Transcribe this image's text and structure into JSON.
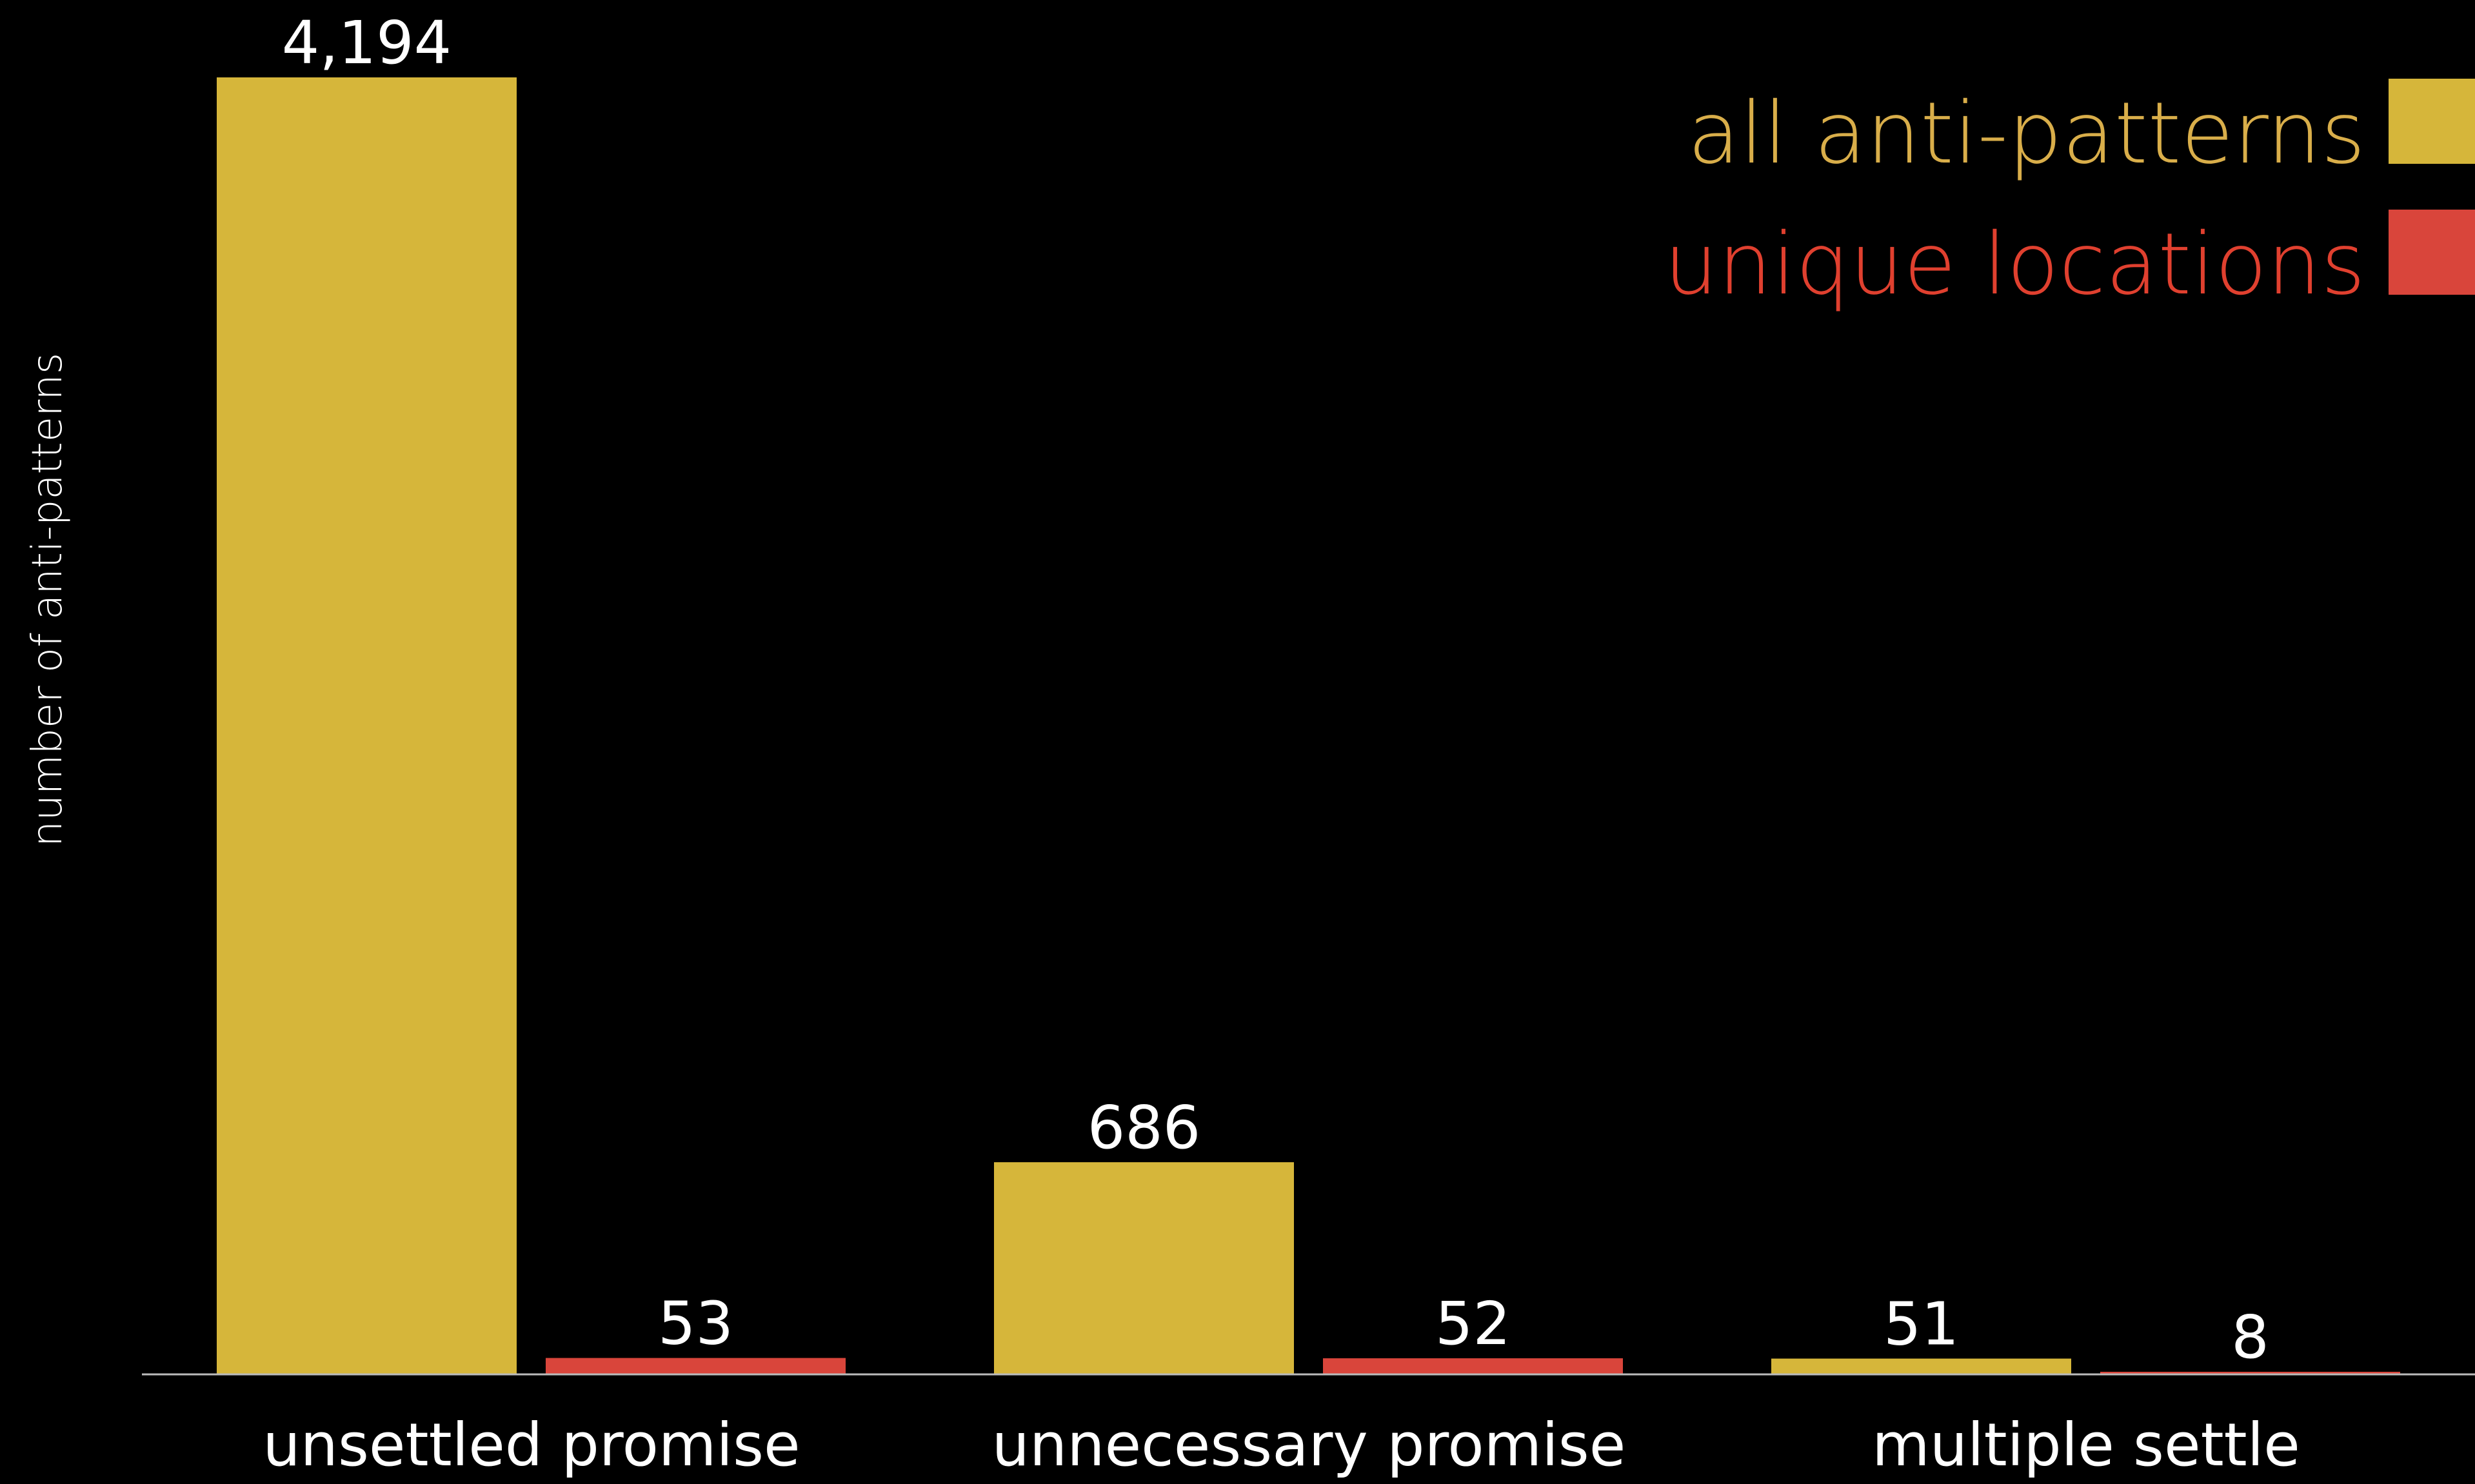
{
  "chart_data": {
    "type": "bar",
    "ylabel": "number of anti-patterns",
    "xlabel": "",
    "categories": [
      "unsettled promise",
      "unnecessary promise",
      "multiple settle"
    ],
    "series": [
      {
        "name": "all anti-patterns",
        "color": "#D6B63A",
        "values": [
          4194,
          686,
          51
        ],
        "labels": [
          "4,194",
          "686",
          "51"
        ]
      },
      {
        "name": "unique locations",
        "color": "#D9453B",
        "values": [
          53,
          52,
          8
        ],
        "labels": [
          "53",
          "52",
          "8"
        ]
      }
    ],
    "ylim": [
      0,
      4194
    ],
    "grid": false,
    "legend": "top-right",
    "legend_text_colors": [
      "#D9AE4A",
      "#E0402F"
    ]
  }
}
